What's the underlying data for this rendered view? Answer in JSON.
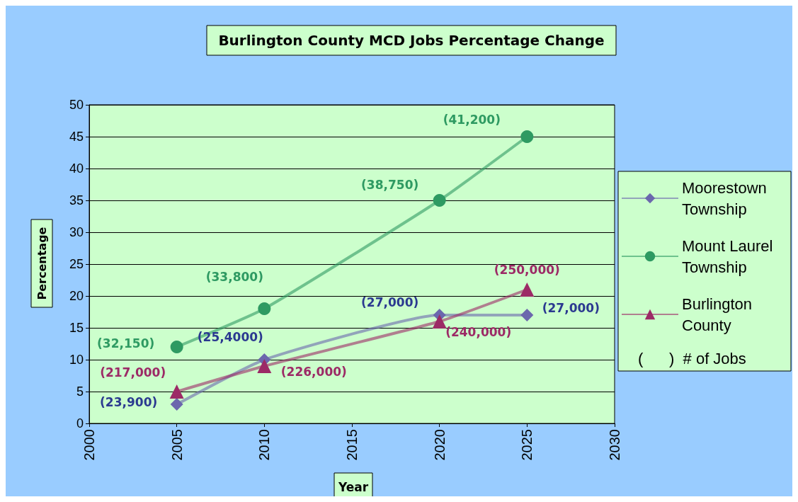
{
  "chart_data": {
    "type": "line",
    "title": "Burlington County MCD Jobs Percentage Change",
    "xlabel": "Year",
    "ylabel": "Percentage",
    "x": [
      2005,
      2010,
      2020,
      2025
    ],
    "series": [
      {
        "name": "Moorestown Township",
        "color": "#6b67ad",
        "marker": "diamond",
        "values": [
          3,
          10,
          17,
          17
        ]
      },
      {
        "name": "Mount Laurel Township",
        "color": "#2e9a62",
        "marker": "circle",
        "values": [
          12,
          18,
          35,
          45
        ]
      },
      {
        "name": "Burlington County",
        "color": "#9c2a66",
        "marker": "triangle",
        "values": [
          5,
          9,
          16,
          21
        ]
      }
    ],
    "xlim": [
      2000,
      2030
    ],
    "xticks": [
      2000,
      2005,
      2010,
      2015,
      2020,
      2025,
      2030
    ],
    "ylim": [
      0,
      50
    ],
    "yticks": [
      0,
      5,
      10,
      15,
      20,
      25,
      30,
      35,
      40,
      45,
      50
    ],
    "grid": "y",
    "legend": "right",
    "line_style": "solid",
    "annotations": [
      {
        "text": "(23,900)",
        "x": 2005,
        "y": 3
      },
      {
        "text": "(25,4000)",
        "x": 2010,
        "y": 10
      },
      {
        "text": "(27,000)",
        "x": 2020,
        "y": 17
      },
      {
        "text": "(27,000)",
        "x": 2025,
        "y": 17
      },
      {
        "text": "(32,150)",
        "x": 2005,
        "y": 12
      },
      {
        "text": "(33,800)",
        "x": 2010,
        "y": 18
      },
      {
        "text": "(38,750)",
        "x": 2020,
        "y": 35
      },
      {
        "text": "(41,200)",
        "x": 2025,
        "y": 45
      },
      {
        "text": "(217,000)",
        "x": 2005,
        "y": 5
      },
      {
        "text": "(226,000)",
        "x": 2010,
        "y": 9
      },
      {
        "text": "(240,000)",
        "x": 2020,
        "y": 16
      },
      {
        "text": "(250,000)",
        "x": 2025,
        "y": 21
      },
      "(      )  # of Jobs"
    ]
  }
}
